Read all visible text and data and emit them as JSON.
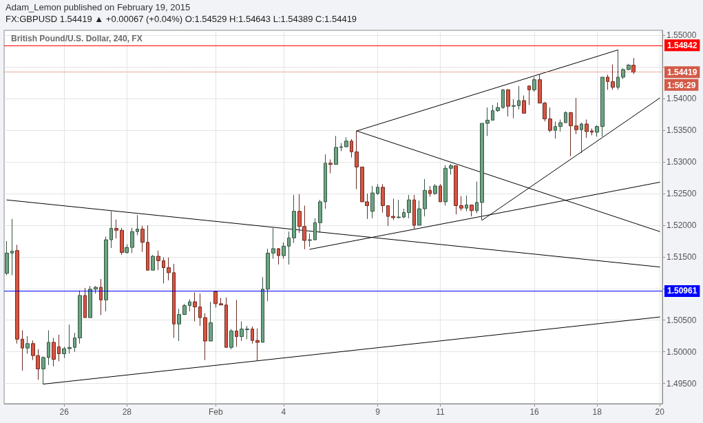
{
  "chart_data": {
    "type": "candlestick",
    "title": "FX:GBPUSD 1.54419 ▲ +0.00067 (+0.04%) O:1.54529 H:1.54643 L:1.54389 C:1.54419",
    "subtitle": "British Pound/U.S. Dollar, 240, FX",
    "annotations": [
      "Adam_Lemon published on February 19, 2015",
      "1:56:29"
    ],
    "categories": [
      null,
      null,
      null,
      null,
      null,
      null,
      null,
      null,
      null,
      null,
      null,
      "26",
      null,
      null,
      null,
      null,
      null,
      null,
      null,
      null,
      null,
      null,
      null,
      "28",
      null,
      null,
      null,
      null,
      null,
      null,
      null,
      null,
      null,
      null,
      null,
      null,
      null,
      null,
      null,
      null,
      "Feb",
      null,
      null,
      null,
      null,
      null,
      null,
      null,
      null,
      null,
      null,
      null,
      null,
      "4",
      null,
      null,
      null,
      null,
      null,
      null,
      null,
      null,
      null,
      null,
      null,
      null,
      null,
      null,
      null,
      null,
      null,
      "9",
      null,
      null,
      null,
      null,
      null,
      null,
      null,
      null,
      null,
      null,
      null,
      "11",
      null,
      null,
      null,
      null,
      null,
      null,
      null,
      null,
      null,
      null,
      null,
      null,
      null,
      null,
      null,
      null,
      null,
      "16",
      null,
      null,
      null,
      null,
      null,
      null,
      null,
      null,
      null,
      null,
      null,
      "18",
      null,
      null,
      null,
      null,
      null,
      null,
      null,
      null,
      null,
      null,
      null,
      "20"
    ],
    "ylim": [
      1.4918,
      1.5508
    ],
    "yticks": [
      {
        "value": 1.495,
        "label": "1.49500"
      },
      {
        "value": 1.5,
        "label": "1.50000"
      },
      {
        "value": 1.505,
        "label": "1.50500"
      },
      {
        "value": 1.51,
        "label": null
      },
      {
        "value": 1.515,
        "label": "1.51500"
      },
      {
        "value": 1.52,
        "label": "1.52000"
      },
      {
        "value": 1.525,
        "label": "1.52500"
      },
      {
        "value": 1.53,
        "label": "1.53000"
      },
      {
        "value": 1.535,
        "label": "1.53500"
      },
      {
        "value": 1.54,
        "label": "1.54000"
      },
      {
        "value": 1.545,
        "label": null
      },
      {
        "value": 1.55,
        "label": "1.55000"
      }
    ],
    "grid": true,
    "ref_lines": [
      {
        "axis": "y",
        "value": 1.54842,
        "label": "1.54842",
        "color": "#ff0000"
      },
      {
        "axis": "y",
        "value": 1.54419,
        "label": "1.54419",
        "color": "#d35a47",
        "line_style": "dotted"
      },
      {
        "axis": "y",
        "value": 1.50961,
        "label": "1.50961",
        "color": "#0000ff"
      }
    ],
    "series": [
      {
        "ohlc": [
          [
            1.5124,
            1.5175,
            1.5121,
            1.5156
          ],
          [
            1.5156,
            1.521,
            1.5121,
            1.5159
          ],
          [
            1.516,
            1.5169,
            1.5013,
            1.502
          ],
          [
            1.502,
            1.5034,
            1.497,
            1.5006
          ],
          [
            1.5006,
            1.5025,
            1.4997,
            1.5013
          ],
          [
            1.5013,
            1.5018,
            1.4987,
            1.4994
          ],
          [
            1.4994,
            1.5004,
            1.4956,
            1.4973
          ],
          [
            1.4973,
            1.4993,
            1.4949,
            1.4991
          ],
          [
            1.4991,
            1.5034,
            1.4979,
            1.5015
          ],
          [
            1.5015,
            1.5022,
            1.4977,
            1.4988
          ],
          [
            1.5008,
            1.5027,
            1.4985,
            1.4997
          ],
          [
            1.4997,
            1.5008,
            1.499,
            1.5005
          ],
          [
            1.5005,
            1.5043,
            1.4997,
            1.5007
          ],
          [
            1.5007,
            1.503,
            1.5,
            1.5022
          ],
          [
            1.5022,
            1.5097,
            1.5013,
            1.5089
          ],
          [
            1.5089,
            1.5101,
            1.5054,
            1.5054
          ],
          [
            1.5054,
            1.5104,
            1.5054,
            1.5099
          ],
          [
            1.5099,
            1.5104,
            1.5092,
            1.5102
          ],
          [
            1.5102,
            1.5115,
            1.5058,
            1.5082
          ],
          [
            1.5082,
            1.5182,
            1.5064,
            1.5177
          ],
          [
            1.5177,
            1.5222,
            1.5164,
            1.5195
          ],
          [
            1.5195,
            1.5209,
            1.5179,
            1.5192
          ],
          [
            1.5192,
            1.5196,
            1.5153,
            1.5157
          ],
          [
            1.5157,
            1.517,
            1.5155,
            1.5165
          ],
          [
            1.5165,
            1.5196,
            1.5156,
            1.519
          ],
          [
            1.519,
            1.5216,
            1.5184,
            1.5194
          ],
          [
            1.5194,
            1.5199,
            1.5158,
            1.5173
          ],
          [
            1.5173,
            1.52,
            1.5129,
            1.5129
          ],
          [
            1.5129,
            1.5153,
            1.5129,
            1.5151
          ],
          [
            1.5151,
            1.516,
            1.5129,
            1.5144
          ],
          [
            1.5144,
            1.5149,
            1.5108,
            1.5133
          ],
          [
            1.5133,
            1.5149,
            1.5113,
            1.5125
          ],
          [
            1.5125,
            1.5139,
            1.5022,
            1.5044
          ],
          [
            1.5044,
            1.5068,
            1.5017,
            1.5059
          ],
          [
            1.5059,
            1.5076,
            1.5058,
            1.5073
          ],
          [
            1.5073,
            1.5083,
            1.5064,
            1.5079
          ],
          [
            1.5079,
            1.5094,
            1.5048,
            1.5071
          ],
          [
            1.5071,
            1.5092,
            1.5041,
            1.5054
          ],
          [
            1.5054,
            1.5061,
            1.4987,
            1.5017
          ],
          [
            1.5017,
            1.5079,
            1.5017,
            1.5046
          ],
          [
            1.5095,
            1.5096,
            1.507,
            1.5076
          ],
          [
            1.5076,
            1.5085,
            1.5074,
            1.5074
          ],
          [
            1.5074,
            1.5086,
            1.5007,
            1.5007
          ],
          [
            1.5007,
            1.5036,
            1.5004,
            1.5033
          ],
          [
            1.5033,
            1.5082,
            1.5008,
            1.5024
          ],
          [
            1.5024,
            1.5048,
            1.5017,
            1.5036
          ],
          [
            1.5035,
            1.5041,
            1.502,
            1.5036
          ],
          [
            1.5036,
            1.504,
            1.5013,
            1.5018
          ],
          [
            1.5018,
            1.5037,
            1.4986,
            1.5015
          ],
          [
            1.5015,
            1.5118,
            1.5015,
            1.5099
          ],
          [
            1.5099,
            1.5163,
            1.508,
            1.5156
          ],
          [
            1.5156,
            1.5196,
            1.5147,
            1.5163
          ],
          [
            1.5163,
            1.5164,
            1.5138,
            1.5152
          ],
          [
            1.5152,
            1.5173,
            1.5147,
            1.5167
          ],
          [
            1.5167,
            1.519,
            1.5138,
            1.518
          ],
          [
            1.518,
            1.5248,
            1.5172,
            1.5222
          ],
          [
            1.5222,
            1.5249,
            1.5188,
            1.5198
          ],
          [
            1.5198,
            1.5231,
            1.5162,
            1.5176
          ],
          [
            1.5176,
            1.5187,
            1.5166,
            1.5177
          ],
          [
            1.5177,
            1.5211,
            1.5176,
            1.5204
          ],
          [
            1.5204,
            1.524,
            1.5188,
            1.5237
          ],
          [
            1.5237,
            1.5312,
            1.5226,
            1.5298
          ],
          [
            1.5298,
            1.5304,
            1.5282,
            1.5296
          ],
          [
            1.5296,
            1.5341,
            1.5296,
            1.5323
          ],
          [
            1.5323,
            1.533,
            1.5317,
            1.5324
          ],
          [
            1.5324,
            1.5339,
            1.5323,
            1.5333
          ],
          [
            1.5333,
            1.5336,
            1.5307,
            1.5316
          ],
          [
            1.5316,
            1.5349,
            1.5257,
            1.5292
          ],
          [
            1.5292,
            1.5292,
            1.5237,
            1.5237
          ],
          [
            1.5237,
            1.525,
            1.521,
            1.5231
          ],
          [
            1.5222,
            1.5262,
            1.5211,
            1.5251
          ],
          [
            1.525,
            1.5265,
            1.5248,
            1.526
          ],
          [
            1.526,
            1.5265,
            1.522,
            1.5231
          ],
          [
            1.5231,
            1.5231,
            1.5199,
            1.5214
          ],
          [
            1.5214,
            1.5242,
            1.5208,
            1.5212
          ],
          [
            1.5212,
            1.524,
            1.5211,
            1.5213
          ],
          [
            1.5213,
            1.5226,
            1.5211,
            1.522
          ],
          [
            1.522,
            1.5248,
            1.5211,
            1.524
          ],
          [
            1.524,
            1.5248,
            1.5194,
            1.52
          ],
          [
            1.52,
            1.5239,
            1.52,
            1.5226
          ],
          [
            1.5226,
            1.5273,
            1.5214,
            1.5255
          ],
          [
            1.5255,
            1.5262,
            1.5245,
            1.525
          ],
          [
            1.525,
            1.5265,
            1.5248,
            1.5262
          ],
          [
            1.5262,
            1.5265,
            1.5237,
            1.5237
          ],
          [
            1.5237,
            1.5295,
            1.5231,
            1.529
          ],
          [
            1.529,
            1.5297,
            1.528,
            1.5294
          ],
          [
            1.5294,
            1.5294,
            1.5217,
            1.5231
          ],
          [
            1.5231,
            1.5246,
            1.5223,
            1.5227
          ],
          [
            1.5227,
            1.5247,
            1.5222,
            1.5232
          ],
          [
            1.5232,
            1.5232,
            1.5214,
            1.5223
          ],
          [
            1.5223,
            1.5269,
            1.5219,
            1.5236
          ],
          [
            1.5236,
            1.5361,
            1.5208,
            1.5361
          ],
          [
            1.5361,
            1.5386,
            1.5341,
            1.5366
          ],
          [
            1.5366,
            1.539,
            1.5366,
            1.5381
          ],
          [
            1.5381,
            1.5394,
            1.5379,
            1.5386
          ],
          [
            1.5386,
            1.5415,
            1.5384,
            1.5414
          ],
          [
            1.5414,
            1.5415,
            1.5372,
            1.5388
          ],
          [
            1.5388,
            1.5399,
            1.5369,
            1.5389
          ],
          [
            1.5389,
            1.542,
            1.5383,
            1.5397
          ],
          [
            1.5397,
            1.5405,
            1.5377,
            1.5377
          ],
          [
            1.542,
            1.5421,
            1.539,
            1.5414
          ],
          [
            1.5414,
            1.5434,
            1.5411,
            1.543
          ],
          [
            1.543,
            1.5438,
            1.5393,
            1.5393
          ],
          [
            1.5393,
            1.5395,
            1.5364,
            1.5368
          ],
          [
            1.5368,
            1.5386,
            1.5347,
            1.535
          ],
          [
            1.535,
            1.5364,
            1.5337,
            1.5356
          ],
          [
            1.5356,
            1.5367,
            1.5348,
            1.5362
          ],
          [
            1.5362,
            1.538,
            1.5362,
            1.5378
          ],
          [
            1.5378,
            1.5379,
            1.5309,
            1.5357
          ],
          [
            1.5357,
            1.5401,
            1.5344,
            1.5351
          ],
          [
            1.5351,
            1.5362,
            1.5314,
            1.536
          ],
          [
            1.536,
            1.5367,
            1.5338,
            1.5348
          ],
          [
            1.5349,
            1.5353,
            1.5342,
            1.5347
          ],
          [
            1.5347,
            1.5358,
            1.534,
            1.5356
          ],
          [
            1.5356,
            1.5434,
            1.534,
            1.5434
          ],
          [
            1.5434,
            1.5438,
            1.5414,
            1.5427
          ],
          [
            1.5427,
            1.5454,
            1.5414,
            1.5418
          ],
          [
            1.5418,
            1.5477,
            1.5414,
            1.5434
          ],
          [
            1.5434,
            1.5448,
            1.5431,
            1.5446
          ],
          [
            1.5446,
            1.5455,
            1.5445,
            1.5453
          ],
          [
            1.54529,
            1.54643,
            1.54389,
            1.54419
          ],
          null,
          null,
          null,
          null,
          null
        ],
        "colors": [
          "#6ba583",
          "#6ba583",
          "#d75442",
          "#d75442",
          "#6ba583",
          "#d75442",
          "#d75442",
          "#6ba583",
          "#6ba583",
          "#d75442",
          "#d75442",
          "#6ba583",
          "#6ba583",
          "#6ba583",
          "#6ba583",
          "#d75442",
          "#6ba583",
          "#6ba583",
          "#d75442",
          "#6ba583",
          "#6ba583",
          "#d75442",
          "#d75442",
          "#6ba583",
          "#6ba583",
          "#6ba583",
          "#d75442",
          "#d75442",
          "#6ba583",
          "#d75442",
          "#d75442",
          "#d75442",
          "#d75442",
          "#6ba583",
          "#6ba583",
          "#6ba583",
          "#d75442",
          "#d75442",
          "#d75442",
          "#6ba583",
          "#d75442",
          "#d75442",
          "#d75442",
          "#6ba583",
          "#d75442",
          "#6ba583",
          "#6ba583",
          "#d75442",
          "#d75442",
          "#6ba583",
          "#6ba583",
          "#6ba583",
          "#d75442",
          "#6ba583",
          "#6ba583",
          "#6ba583",
          "#d75442",
          "#d75442",
          "#6ba583",
          "#6ba583",
          "#6ba583",
          "#6ba583",
          "#d75442",
          "#6ba583",
          "#6ba583",
          "#6ba583",
          "#d75442",
          "#d75442",
          "#d75442",
          "#d75442",
          "#6ba583",
          "#6ba583",
          "#d75442",
          "#d75442",
          "#d75442",
          "#6ba583",
          "#6ba583",
          "#6ba583",
          "#d75442",
          "#6ba583",
          "#6ba583",
          "#d75442",
          "#6ba583",
          "#d75442",
          "#6ba583",
          "#6ba583",
          "#d75442",
          "#d75442",
          "#6ba583",
          "#d75442",
          "#6ba583",
          "#6ba583",
          "#6ba583",
          "#6ba583",
          "#6ba583",
          "#6ba583",
          "#d75442",
          "#6ba583",
          "#6ba583",
          "#d75442",
          "#d75442",
          "#6ba583",
          "#d75442",
          "#d75442",
          "#d75442",
          "#6ba583",
          "#6ba583",
          "#6ba583",
          "#d75442",
          "#d75442",
          "#6ba583",
          "#d75442",
          "#d75442",
          "#6ba583",
          "#6ba583",
          "#d75442",
          "#d75442",
          "#6ba583",
          "#6ba583",
          "#6ba583",
          "#d75442",
          null,
          null,
          null,
          null,
          null
        ]
      },
      {
        "type": "line",
        "color": "#000000",
        "values": [
          null,
          null,
          null,
          null,
          null,
          null,
          null,
          1.4949,
          null,
          null,
          null,
          null,
          null,
          null,
          null,
          null,
          null,
          null,
          null,
          null,
          null,
          null,
          null,
          null,
          null,
          null,
          null,
          null,
          null,
          null,
          null,
          null,
          null,
          null,
          null,
          null,
          null,
          null,
          null,
          null,
          null,
          null,
          null,
          null,
          null,
          null,
          null,
          null,
          null,
          null,
          null,
          null,
          null,
          null,
          null,
          null,
          null,
          null,
          null,
          null,
          null,
          null,
          null,
          null,
          null,
          null,
          null,
          null,
          null,
          null,
          null,
          null,
          null,
          null,
          null,
          null,
          null,
          null,
          null,
          null,
          null,
          null,
          null,
          null,
          null,
          null,
          null,
          null,
          null,
          null,
          null,
          null,
          null,
          null,
          null,
          null,
          null,
          null,
          null,
          null,
          null,
          null,
          null,
          null,
          null,
          null,
          null,
          null,
          null,
          null,
          null,
          null,
          null,
          null,
          null,
          null,
          null,
          null,
          null,
          null,
          null,
          null,
          null,
          null,
          null,
          1.5055
        ]
      },
      {
        "type": "line",
        "color": "#000000",
        "values": [
          1.524,
          null,
          null,
          null,
          null,
          null,
          null,
          null,
          null,
          null,
          null,
          null,
          null,
          null,
          null,
          null,
          null,
          null,
          null,
          null,
          null,
          null,
          null,
          null,
          null,
          null,
          null,
          null,
          null,
          null,
          null,
          null,
          null,
          null,
          null,
          null,
          null,
          null,
          null,
          null,
          null,
          null,
          null,
          null,
          null,
          null,
          null,
          null,
          null,
          null,
          null,
          null,
          null,
          null,
          null,
          null,
          null,
          null,
          null,
          null,
          null,
          null,
          null,
          null,
          null,
          null,
          null,
          null,
          null,
          null,
          null,
          null,
          null,
          null,
          null,
          null,
          null,
          null,
          null,
          null,
          null,
          null,
          null,
          null,
          null,
          null,
          null,
          null,
          null,
          null,
          null,
          null,
          null,
          null,
          null,
          null,
          null,
          null,
          null,
          null,
          null,
          null,
          null,
          null,
          null,
          null,
          null,
          null,
          null,
          null,
          null,
          null,
          null,
          null,
          null,
          null,
          null,
          null,
          null,
          null,
          null,
          null,
          null,
          null,
          null,
          1.5134
        ]
      },
      {
        "type": "line",
        "color": "#000000",
        "values": [
          null,
          null,
          null,
          null,
          null,
          null,
          null,
          null,
          null,
          null,
          null,
          null,
          null,
          null,
          null,
          null,
          null,
          null,
          null,
          null,
          null,
          null,
          null,
          null,
          null,
          null,
          null,
          null,
          null,
          null,
          null,
          null,
          null,
          null,
          null,
          null,
          null,
          null,
          null,
          null,
          null,
          null,
          null,
          null,
          null,
          null,
          null,
          null,
          null,
          null,
          null,
          null,
          null,
          null,
          null,
          null,
          null,
          null,
          1.5162,
          null,
          null,
          null,
          null,
          null,
          null,
          null,
          null,
          null,
          null,
          null,
          null,
          null,
          null,
          null,
          null,
          null,
          null,
          null,
          null,
          null,
          null,
          null,
          null,
          null,
          null,
          null,
          null,
          null,
          null,
          null,
          null,
          null,
          null,
          null,
          null,
          null,
          null,
          null,
          null,
          null,
          null,
          null,
          null,
          null,
          null,
          null,
          null,
          null,
          null,
          null,
          null,
          null,
          null,
          null,
          null,
          null,
          null,
          null,
          null,
          null,
          null,
          null,
          null,
          null,
          null,
          1.5268
        ]
      },
      {
        "type": "line",
        "color": "#000000",
        "values": [
          null,
          null,
          null,
          null,
          null,
          null,
          null,
          null,
          null,
          null,
          null,
          null,
          null,
          null,
          null,
          null,
          null,
          null,
          null,
          null,
          null,
          null,
          null,
          null,
          null,
          null,
          null,
          null,
          null,
          null,
          null,
          null,
          null,
          null,
          null,
          null,
          null,
          null,
          null,
          null,
          null,
          null,
          null,
          null,
          null,
          null,
          null,
          null,
          null,
          null,
          null,
          null,
          null,
          null,
          null,
          null,
          null,
          null,
          null,
          null,
          null,
          null,
          null,
          null,
          null,
          null,
          null,
          1.5349,
          null,
          null,
          null,
          null,
          null,
          null,
          null,
          null,
          null,
          null,
          null,
          null,
          null,
          null,
          null,
          null,
          null,
          null,
          null,
          null,
          null,
          null,
          null,
          null,
          null,
          null,
          null,
          null,
          null,
          null,
          null,
          null,
          null,
          null,
          null,
          null,
          null,
          null,
          null,
          null,
          null,
          null,
          null,
          null,
          null,
          null,
          null,
          null,
          null,
          null,
          null,
          null,
          null,
          null,
          null,
          null,
          null,
          1.519
        ]
      },
      {
        "type": "line",
        "color": "#000000",
        "values": [
          null,
          null,
          null,
          null,
          null,
          null,
          null,
          null,
          null,
          null,
          null,
          null,
          null,
          null,
          null,
          null,
          null,
          null,
          null,
          null,
          null,
          null,
          null,
          null,
          null,
          null,
          null,
          null,
          null,
          null,
          null,
          null,
          null,
          null,
          null,
          null,
          null,
          null,
          null,
          null,
          null,
          null,
          null,
          null,
          null,
          null,
          null,
          null,
          null,
          null,
          null,
          null,
          null,
          null,
          null,
          null,
          null,
          null,
          null,
          null,
          null,
          null,
          null,
          null,
          null,
          null,
          null,
          1.5349,
          null,
          null,
          null,
          null,
          null,
          null,
          null,
          null,
          null,
          null,
          null,
          null,
          null,
          null,
          null,
          null,
          null,
          null,
          null,
          null,
          null,
          null,
          null,
          null,
          null,
          null,
          null,
          null,
          null,
          null,
          null,
          null,
          null,
          null,
          null,
          null,
          null,
          null,
          null,
          null,
          null,
          null,
          null,
          null,
          null,
          null,
          null,
          null,
          null,
          1.5477,
          null,
          null,
          null,
          null,
          null,
          null,
          null,
          null
        ]
      },
      {
        "type": "line",
        "color": "#000000",
        "values": [
          null,
          null,
          null,
          null,
          null,
          null,
          null,
          null,
          null,
          null,
          null,
          null,
          null,
          null,
          null,
          null,
          null,
          null,
          null,
          null,
          null,
          null,
          null,
          null,
          null,
          null,
          null,
          null,
          null,
          null,
          null,
          null,
          null,
          null,
          null,
          null,
          null,
          null,
          null,
          null,
          null,
          null,
          null,
          null,
          null,
          null,
          null,
          null,
          null,
          null,
          null,
          null,
          null,
          null,
          null,
          null,
          null,
          null,
          null,
          null,
          null,
          null,
          null,
          null,
          null,
          null,
          null,
          null,
          null,
          null,
          null,
          null,
          null,
          null,
          null,
          null,
          null,
          null,
          null,
          null,
          null,
          null,
          null,
          null,
          null,
          null,
          null,
          null,
          null,
          null,
          null,
          1.5208,
          null,
          null,
          null,
          null,
          null,
          null,
          null,
          null,
          null,
          null,
          null,
          null,
          null,
          null,
          null,
          null,
          null,
          null,
          null,
          null,
          null,
          null,
          null,
          null,
          null,
          null,
          null,
          null,
          null,
          null,
          null,
          null,
          null,
          1.5401
        ]
      }
    ]
  }
}
